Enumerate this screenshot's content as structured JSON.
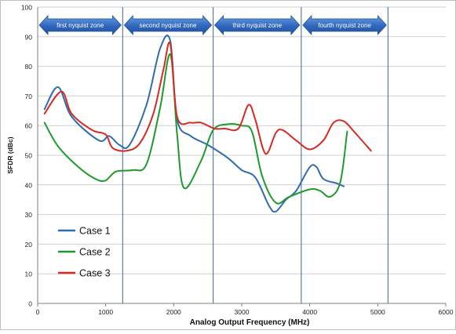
{
  "chart_data": {
    "type": "line",
    "xlabel": "Analog Output Frequency (MHz)",
    "ylabel": "SFDR (dBc)",
    "xlim": [
      0,
      6000
    ],
    "ylim": [
      0,
      100
    ],
    "x_ticks": [
      "0",
      "1000",
      "2000",
      "3000",
      "4000",
      "5000",
      "6000"
    ],
    "y_ticks": [
      "0",
      "10",
      "20",
      "30",
      "40",
      "50",
      "60",
      "70",
      "80",
      "90",
      "100"
    ],
    "grid": "horizontal",
    "legend_position": "bottom-left",
    "zone_boundaries": [
      1250,
      2580,
      3875,
      5150
    ],
    "zones": [
      {
        "label": "first nyquist zone",
        "x_start": 0,
        "x_end": 1250
      },
      {
        "label": "second nyquist zone",
        "x_start": 1250,
        "x_end": 2580
      },
      {
        "label": "third nyquist zone",
        "x_start": 2580,
        "x_end": 3875
      },
      {
        "label": "fourth nyquist zone",
        "x_start": 3875,
        "x_end": 5150
      }
    ],
    "series": [
      {
        "name": "Case 1",
        "color": "#2e6cb0",
        "points": [
          [
            100,
            65.5
          ],
          [
            300,
            73
          ],
          [
            500,
            63
          ],
          [
            900,
            55
          ],
          [
            1050,
            56.5
          ],
          [
            1200,
            53.5
          ],
          [
            1350,
            53.5
          ],
          [
            1600,
            67
          ],
          [
            1800,
            86
          ],
          [
            1950,
            88.5
          ],
          [
            2050,
            62
          ],
          [
            2250,
            56.5
          ],
          [
            2500,
            53.5
          ],
          [
            2800,
            49
          ],
          [
            3000,
            45
          ],
          [
            3200,
            42.5
          ],
          [
            3400,
            33
          ],
          [
            3500,
            31
          ],
          [
            3650,
            35
          ],
          [
            3800,
            38
          ],
          [
            4000,
            46
          ],
          [
            4100,
            46
          ],
          [
            4200,
            42
          ],
          [
            4400,
            40.5
          ],
          [
            4500,
            39.5
          ]
        ]
      },
      {
        "name": "Case 2",
        "color": "#1e9a2c",
        "points": [
          [
            100,
            61
          ],
          [
            300,
            53
          ],
          [
            600,
            46
          ],
          [
            850,
            42
          ],
          [
            1000,
            41.5
          ],
          [
            1150,
            44.5
          ],
          [
            1400,
            45
          ],
          [
            1600,
            47
          ],
          [
            1800,
            66
          ],
          [
            1950,
            84
          ],
          [
            2050,
            57
          ],
          [
            2150,
            39
          ],
          [
            2400,
            48
          ],
          [
            2580,
            58.5
          ],
          [
            2800,
            60.5
          ],
          [
            3000,
            60
          ],
          [
            3150,
            58
          ],
          [
            3300,
            43
          ],
          [
            3500,
            34
          ],
          [
            3700,
            36
          ],
          [
            4000,
            38.5
          ],
          [
            4150,
            38
          ],
          [
            4300,
            36
          ],
          [
            4450,
            41
          ],
          [
            4550,
            58
          ]
        ]
      },
      {
        "name": "Case 3",
        "color": "#d62a22",
        "points": [
          [
            100,
            64
          ],
          [
            350,
            71.5
          ],
          [
            500,
            64
          ],
          [
            800,
            58.5
          ],
          [
            1000,
            57
          ],
          [
            1100,
            52.5
          ],
          [
            1300,
            51.5
          ],
          [
            1500,
            54
          ],
          [
            1700,
            64
          ],
          [
            1850,
            79
          ],
          [
            1950,
            87.5
          ],
          [
            2050,
            63
          ],
          [
            2250,
            61
          ],
          [
            2400,
            61
          ],
          [
            2600,
            59
          ],
          [
            2750,
            59
          ],
          [
            2950,
            59
          ],
          [
            3100,
            67
          ],
          [
            3200,
            62
          ],
          [
            3350,
            50.5
          ],
          [
            3500,
            57.5
          ],
          [
            3600,
            58.5
          ],
          [
            3800,
            55
          ],
          [
            4000,
            52
          ],
          [
            4200,
            55
          ],
          [
            4350,
            61
          ],
          [
            4500,
            61.5
          ],
          [
            4650,
            58
          ],
          [
            4900,
            51.5
          ]
        ]
      }
    ]
  }
}
